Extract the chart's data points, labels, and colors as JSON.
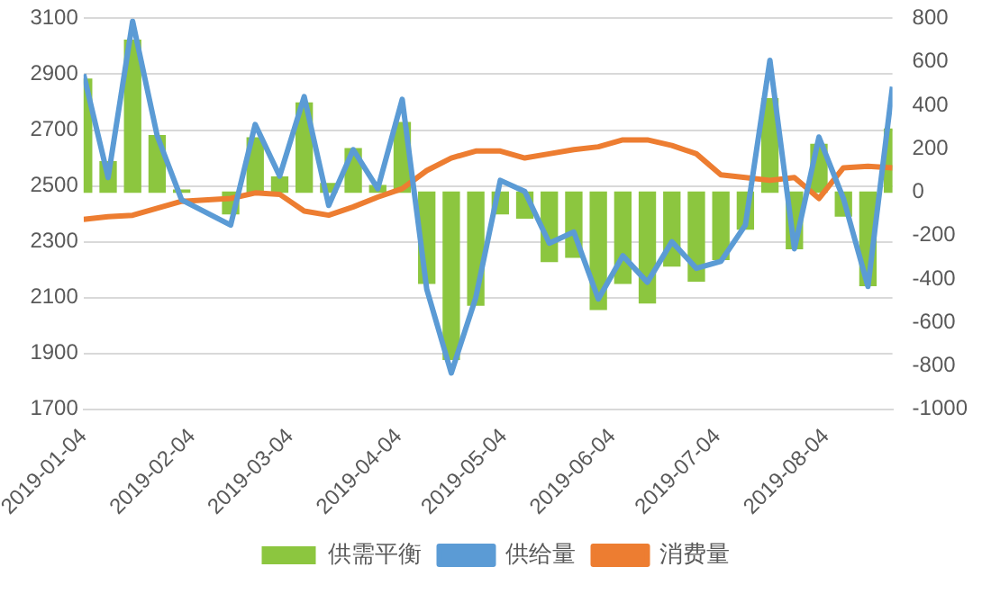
{
  "chart_data": {
    "type": "bar",
    "x": [
      "2019-01-04",
      "2019-01-11",
      "2019-01-18",
      "2019-01-25",
      "2019-02-01",
      "2019-02-15",
      "2019-02-22",
      "2019-03-01",
      "2019-03-08",
      "2019-03-15",
      "2019-03-22",
      "2019-03-29",
      "2019-04-05",
      "2019-04-12",
      "2019-04-19",
      "2019-04-26",
      "2019-05-03",
      "2019-05-10",
      "2019-05-17",
      "2019-05-24",
      "2019-05-31",
      "2019-06-07",
      "2019-06-14",
      "2019-06-21",
      "2019-06-28",
      "2019-07-05",
      "2019-07-12",
      "2019-07-19",
      "2019-07-26",
      "2019-08-02",
      "2019-08-09",
      "2019-08-16",
      "2019-08-23"
    ],
    "series": [
      {
        "name": "供需平衡",
        "axis": "y2",
        "color": "#8cc63f",
        "values": [
          520,
          140,
          700,
          260,
          10,
          -100,
          250,
          70,
          410,
          40,
          200,
          30,
          320,
          -420,
          -770,
          -520,
          -100,
          -120,
          -320,
          -300,
          -540,
          -420,
          -510,
          -340,
          -410,
          -310,
          -170,
          430,
          -260,
          220,
          -110,
          -430,
          290
        ]
      },
      {
        "name": "供给量",
        "type": "line",
        "color": "#5b9bd5",
        "values": [
          2900,
          2530,
          3090,
          2680,
          2450,
          2360,
          2720,
          2535,
          2820,
          2430,
          2630,
          2490,
          2810,
          2130,
          1830,
          2100,
          2520,
          2480,
          2295,
          2335,
          2095,
          2250,
          2155,
          2300,
          2205,
          2230,
          2360,
          2950,
          2275,
          2675,
          2455,
          2140,
          2855
        ]
      },
      {
        "name": "消费量",
        "type": "line",
        "color": "#ed7d31",
        "values": [
          2380,
          2390,
          2395,
          2420,
          2445,
          2455,
          2475,
          2470,
          2410,
          2395,
          2425,
          2460,
          2490,
          2555,
          2600,
          2625,
          2625,
          2600,
          2615,
          2630,
          2640,
          2665,
          2665,
          2645,
          2615,
          2540,
          2530,
          2520,
          2530,
          2455,
          2565,
          2570,
          2565
        ]
      }
    ],
    "xlim": [
      "2019-01-04",
      "2019-08-23"
    ],
    "xticks": [
      "2019-01-04",
      "2019-02-04",
      "2019-03-04",
      "2019-04-04",
      "2019-05-04",
      "2019-06-04",
      "2019-07-04",
      "2019-08-04"
    ],
    "ylim": [
      1700,
      3100
    ],
    "yticks": [
      1700,
      1900,
      2100,
      2300,
      2500,
      2700,
      2900,
      3100
    ],
    "y2lim": [
      -1000,
      800
    ],
    "y2ticks": [
      -1000,
      -800,
      -600,
      -400,
      -200,
      0,
      200,
      400,
      600,
      800
    ],
    "grid": "y",
    "legend": "bottom",
    "marker": "none",
    "line_style": "solid"
  }
}
